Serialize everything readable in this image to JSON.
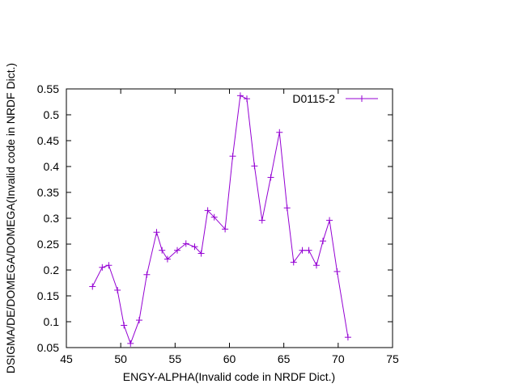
{
  "chart_data": {
    "type": "line",
    "xlabel": "ENGY-ALPHA(Invalid code in NRDF Dict.)",
    "ylabel": "DSIGMA/DE/DOMEGA/DOMEGA(Invalid code in NRDF Dict.)",
    "xlim": [
      45,
      75
    ],
    "ylim": [
      0.05,
      0.55
    ],
    "xticks": [
      "45",
      "50",
      "55",
      "60",
      "65",
      "70",
      "75"
    ],
    "yticks": [
      "0.05",
      "0.1",
      "0.15",
      "0.2",
      "0.25",
      "0.3",
      "0.35",
      "0.4",
      "0.45",
      "0.5",
      "0.55"
    ],
    "grid": false,
    "legend_position": "top-right",
    "series": [
      {
        "name": "D0115-2",
        "color": "#9400d3",
        "marker": "plus",
        "x": [
          47.4,
          48.3,
          48.9,
          49.7,
          50.3,
          50.9,
          51.7,
          52.4,
          53.3,
          53.8,
          54.3,
          55.2,
          56.0,
          56.8,
          57.4,
          58.0,
          58.6,
          59.6,
          60.3,
          61.0,
          61.6,
          62.3,
          63.0,
          63.8,
          64.6,
          65.3,
          65.9,
          66.7,
          67.3,
          68.0,
          68.6,
          69.2,
          69.9,
          70.9
        ],
        "y": [
          0.168,
          0.205,
          0.209,
          0.161,
          0.093,
          0.058,
          0.103,
          0.191,
          0.273,
          0.238,
          0.221,
          0.238,
          0.251,
          0.245,
          0.232,
          0.315,
          0.302,
          0.279,
          0.42,
          0.537,
          0.531,
          0.401,
          0.296,
          0.379,
          0.466,
          0.32,
          0.215,
          0.238,
          0.238,
          0.209,
          0.256,
          0.296,
          0.197,
          0.07
        ]
      }
    ]
  }
}
